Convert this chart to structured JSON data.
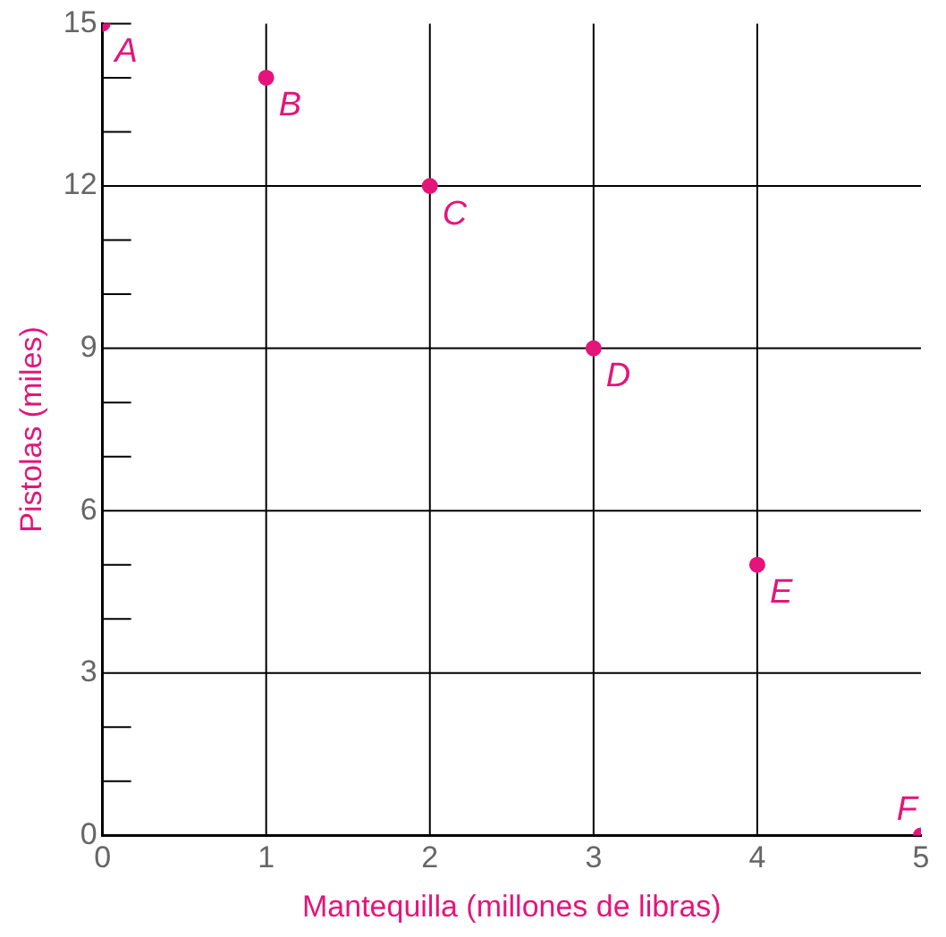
{
  "chart_data": {
    "type": "scatter",
    "xlabel": "Mantequilla (millones de libras)",
    "ylabel": "Pistolas (miles)",
    "x": [
      0,
      1,
      2,
      3,
      4,
      5
    ],
    "series": [
      {
        "color": "#e5147a",
        "values": [
          15,
          14,
          12,
          9,
          5,
          0
        ]
      }
    ],
    "xlim": [
      0,
      5
    ],
    "xticks": [
      0,
      1,
      2,
      3,
      4,
      5
    ],
    "ylim": [
      0,
      15
    ],
    "yticks": [
      0,
      {
        "value": 1,
        "label": null
      },
      {
        "value": 2,
        "label": null
      },
      3,
      {
        "value": 4,
        "label": null
      },
      {
        "value": 5,
        "label": null
      },
      6,
      {
        "value": 7,
        "label": null
      },
      {
        "value": 8,
        "label": null
      },
      9,
      {
        "value": 10,
        "label": null
      },
      {
        "value": 11,
        "label": null
      },
      12,
      {
        "value": 13,
        "label": null
      },
      {
        "value": 14,
        "label": null
      },
      15
    ],
    "grid": true,
    "marker": "circle",
    "legend": false,
    "annotations": [
      {
        "text": "A",
        "x": 0,
        "y": 15
      },
      {
        "text": "B",
        "x": 1,
        "y": 14
      },
      {
        "text": "C",
        "x": 2,
        "y": 12
      },
      {
        "text": "D",
        "x": 3,
        "y": 9
      },
      {
        "text": "E",
        "x": 4,
        "y": 5
      },
      {
        "text": "F",
        "x": 5,
        "y": 0
      }
    ]
  }
}
